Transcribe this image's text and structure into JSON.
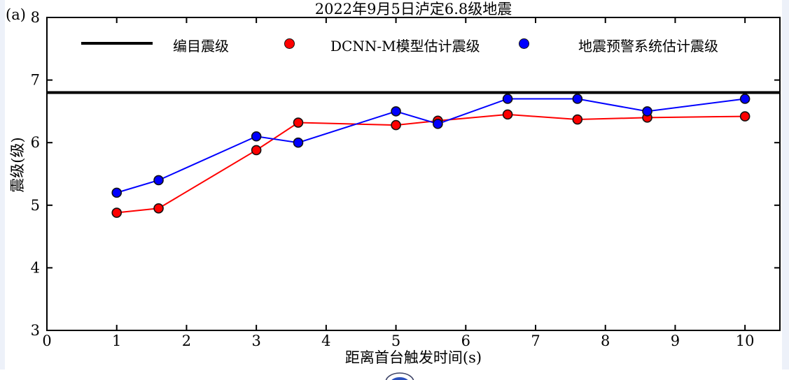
{
  "page": {
    "panel_label": "(a)"
  },
  "chart_data": {
    "type": "line",
    "title": "2022年9月5日泸定6.8级地震",
    "xlabel": "距离首台触发时间(s)",
    "ylabel": "震级(级)",
    "xlim": [
      0,
      10.5
    ],
    "ylim": [
      3,
      8
    ],
    "xticks": [
      0,
      1,
      2,
      3,
      4,
      5,
      6,
      7,
      8,
      9,
      10
    ],
    "yticks": [
      3,
      4,
      5,
      6,
      7,
      8
    ],
    "grid": false,
    "legend_position": "top-inside-row",
    "reference_line": {
      "label": "编目震级",
      "y": 6.8,
      "color": "#000000"
    },
    "x": [
      1,
      1.6,
      3,
      3.6,
      5,
      5.6,
      6.6,
      7.6,
      8.6,
      10
    ],
    "series": [
      {
        "name": "DCNN-M模型估计震级",
        "color": "#ff0000",
        "marker": "circle",
        "values": [
          4.88,
          4.95,
          5.88,
          6.32,
          6.28,
          6.35,
          6.45,
          6.37,
          6.4,
          6.42
        ]
      },
      {
        "name": "地震预警系统估计震级",
        "color": "#0000ff",
        "marker": "circle",
        "values": [
          5.2,
          5.4,
          6.1,
          6.0,
          6.5,
          6.3,
          6.7,
          6.7,
          6.5,
          6.7
        ]
      }
    ]
  },
  "legend": {
    "items": [
      {
        "label": "编目震级",
        "swatch": "line",
        "color": "#000000"
      },
      {
        "label": "DCNN-M模型估计震级",
        "swatch": "dot",
        "color": "#ff0000"
      },
      {
        "label": "地震预警系统估计震级",
        "swatch": "dot",
        "color": "#0000ff"
      }
    ]
  },
  "colors": {
    "page_strip": "#edf1f9",
    "axis": "#000000",
    "series_red": "#ff0000",
    "series_blue": "#0000ff",
    "logo_ring": "#3d4366",
    "logo_fill": "#2b50bd"
  },
  "watermark": {
    "type": "partial-circle-logo"
  }
}
